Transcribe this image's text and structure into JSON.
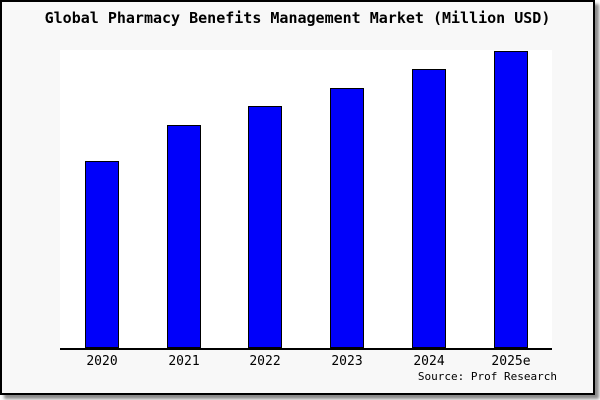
{
  "frame": {
    "background": "#f8f8f8",
    "border_color": "#000000"
  },
  "chart_data": {
    "type": "bar",
    "title": "Global Pharmacy Benefits Management Market (Million USD)",
    "categories": [
      "2020",
      "2021",
      "2022",
      "2023",
      "2024",
      "2025e"
    ],
    "values": [
      62.8,
      75.2,
      81.5,
      87.7,
      93.9,
      100.0
    ],
    "value_scale_note": "y-axis shows no tick labels or gridlines; values are bar heights expressed as % of the tallest (2025e) bar",
    "xlabel": "",
    "ylabel": "",
    "grid": false,
    "legend": false,
    "bar_color": "#0000fa",
    "bar_edge_color": "#000000",
    "plot_background": "#ffffff",
    "axis_color": "#000000",
    "source": "Source: Prof Research"
  }
}
